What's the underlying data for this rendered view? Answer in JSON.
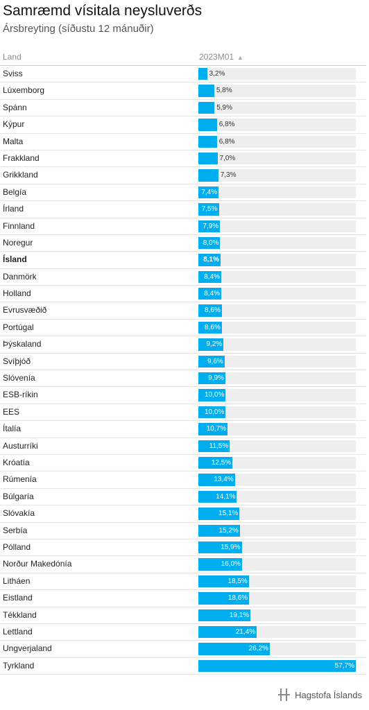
{
  "title": "Samræmd vísitala neysluverðs",
  "subtitle": "Ársbreyting (síðustu 12 mánuðir)",
  "table": {
    "column_label": "Land",
    "value_column": "2023M01",
    "sort_icon": "sort-ascending-icon"
  },
  "colors": {
    "bar": "#00adef",
    "track": "#eeeeee"
  },
  "chart_data": {
    "type": "bar",
    "orientation": "horizontal",
    "title": "Samræmd vísitala neysluverðs",
    "subtitle": "Ársbreyting (síðustu 12 mánuðir)",
    "series": [
      {
        "name": "2023M01",
        "values": [
          3.2,
          5.8,
          5.9,
          6.8,
          6.8,
          7.0,
          7.3,
          7.4,
          7.5,
          7.9,
          8.0,
          8.1,
          8.4,
          8.4,
          8.6,
          8.6,
          9.2,
          9.6,
          9.9,
          10.0,
          10.0,
          10.7,
          11.5,
          12.5,
          13.4,
          14.1,
          15.1,
          15.2,
          15.9,
          16.0,
          18.5,
          18.6,
          19.1,
          21.4,
          26.2,
          57.7
        ]
      }
    ],
    "categories": [
      "Sviss",
      "Lúxemborg",
      "Spánn",
      "Kýpur",
      "Malta",
      "Frakkland",
      "Grikkland",
      "Belgía",
      "Írland",
      "Finnland",
      "Noregur",
      "Ísland",
      "Danmörk",
      "Holland",
      "Evrusvæðið",
      "Portúgal",
      "Þýskaland",
      "Svíþjóð",
      "Slóvenía",
      "ESB-ríkin",
      "EES",
      "Ítalía",
      "Austurríki",
      "Króatía",
      "Rúmenía",
      "Búlgaría",
      "Slóvakía",
      "Serbía",
      "Pólland",
      "Norður Makedónía",
      "Litháen",
      "Eistland",
      "Tékkland",
      "Lettland",
      "Ungverjaland",
      "Tyrkland"
    ],
    "labels": [
      "3,2%",
      "5,8%",
      "5,9%",
      "6,8%",
      "6,8%",
      "7,0%",
      "7,3%",
      "7,4%",
      "7,5%",
      "7,9%",
      "8,0%",
      "8,1%",
      "8,4%",
      "8,4%",
      "8,6%",
      "8,6%",
      "9,2%",
      "9,6%",
      "9,9%",
      "10,0%",
      "10,0%",
      "10,7%",
      "11,5%",
      "12,5%",
      "13,4%",
      "14,1%",
      "15,1%",
      "15,2%",
      "15,9%",
      "16,0%",
      "18,5%",
      "18,6%",
      "19,1%",
      "21,4%",
      "26,2%",
      "57,7%"
    ],
    "highlight": "Ísland",
    "xlim": [
      0,
      57.7
    ],
    "grid": false,
    "sort": "ascending"
  },
  "footer": {
    "brand": "Hagstofa Íslands",
    "logo_icon": "hagstofa-logo-icon"
  }
}
